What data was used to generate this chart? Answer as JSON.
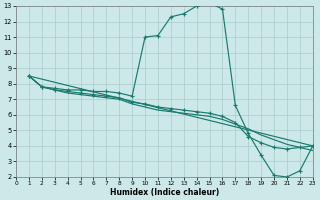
{
  "xlabel": "Humidex (Indice chaleur)",
  "xlim": [
    0,
    23
  ],
  "ylim": [
    2,
    13
  ],
  "xticks": [
    0,
    1,
    2,
    3,
    4,
    5,
    6,
    7,
    8,
    9,
    10,
    11,
    12,
    13,
    14,
    15,
    16,
    17,
    18,
    19,
    20,
    21,
    22,
    23
  ],
  "yticks": [
    2,
    3,
    4,
    5,
    6,
    7,
    8,
    9,
    10,
    11,
    12,
    13
  ],
  "line_color": "#1a7a6e",
  "bg_color": "#cce8e8",
  "grid_color": "#aacccc",
  "curve1_x": [
    1,
    2,
    3,
    4,
    5,
    6,
    7,
    8,
    9,
    10,
    11,
    12,
    13,
    14,
    15,
    16,
    17,
    18,
    19,
    20,
    21,
    22,
    23
  ],
  "curve1_y": [
    8.5,
    7.8,
    7.7,
    7.6,
    7.6,
    7.5,
    7.5,
    7.4,
    7.2,
    11.0,
    11.1,
    12.3,
    12.5,
    13.0,
    13.2,
    12.8,
    6.6,
    4.8,
    3.4,
    2.1,
    2.0,
    2.4,
    4.0
  ],
  "curve2_x": [
    1,
    2,
    3,
    4,
    5,
    6,
    7,
    8,
    9,
    10,
    11,
    12,
    13,
    14,
    15,
    16,
    17,
    18,
    19,
    20,
    21,
    22,
    23
  ],
  "curve2_y": [
    8.5,
    7.8,
    7.6,
    7.5,
    7.4,
    7.3,
    7.2,
    7.1,
    6.8,
    6.7,
    6.5,
    6.4,
    6.3,
    6.2,
    6.1,
    5.9,
    5.5,
    4.6,
    4.2,
    3.9,
    3.8,
    3.9,
    4.0
  ],
  "curve3_x": [
    1,
    23
  ],
  "curve3_y": [
    8.5,
    4.0
  ],
  "curve4_x": [
    1,
    2,
    3,
    4,
    5,
    6,
    7,
    8,
    9,
    10,
    11,
    12,
    13,
    14,
    15,
    16,
    17,
    18,
    19,
    20,
    21,
    22,
    23
  ],
  "curve4_y": [
    8.5,
    7.8,
    7.6,
    7.4,
    7.3,
    7.2,
    7.1,
    7.0,
    6.7,
    6.5,
    6.3,
    6.2,
    6.1,
    6.0,
    5.9,
    5.7,
    5.4,
    5.1,
    4.7,
    4.4,
    4.1,
    3.9,
    3.7
  ]
}
